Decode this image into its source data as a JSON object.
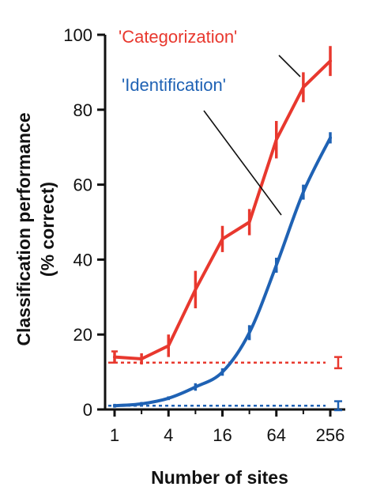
{
  "chart_data": {
    "type": "line",
    "title": "",
    "xlabel": "Number of sites",
    "ylabel_lines": [
      "Classification performance",
      "(% correct)"
    ],
    "xscale": "log2",
    "xlim": [
      1,
      256
    ],
    "ylim": [
      0,
      100
    ],
    "xticks": [
      1,
      4,
      16,
      64,
      256
    ],
    "xtick_labels": [
      "1",
      "4",
      "16",
      "64",
      "256"
    ],
    "yticks": [
      0,
      20,
      40,
      60,
      80,
      100
    ],
    "ytick_labels": [
      "0",
      "20",
      "40",
      "60",
      "80",
      "100"
    ],
    "grid": false,
    "legend": "inline labels at top-left with leader lines",
    "series": [
      {
        "name": "'Categorization'",
        "color": "#e8382e",
        "x": [
          1,
          2,
          4,
          8,
          16,
          32,
          64,
          128,
          256
        ],
        "y": [
          14,
          13.5,
          17,
          32,
          45.5,
          50,
          72,
          86,
          93
        ],
        "error": [
          1.5,
          1.5,
          3,
          5,
          3.5,
          3.5,
          5,
          4,
          4
        ],
        "chance_level": 12.5,
        "chance_error": 1.5
      },
      {
        "name": "'Identification'",
        "color": "#1f62b4",
        "x": [
          1,
          2,
          4,
          8,
          16,
          32,
          64,
          128,
          256
        ],
        "y": [
          1,
          1.5,
          3,
          6,
          10,
          20.5,
          38.5,
          58,
          72.5
        ],
        "error": [
          0.5,
          0.5,
          0.5,
          1,
          1,
          2,
          2,
          2,
          1.5
        ],
        "chance_level": 1,
        "chance_error": 1.2
      }
    ]
  }
}
